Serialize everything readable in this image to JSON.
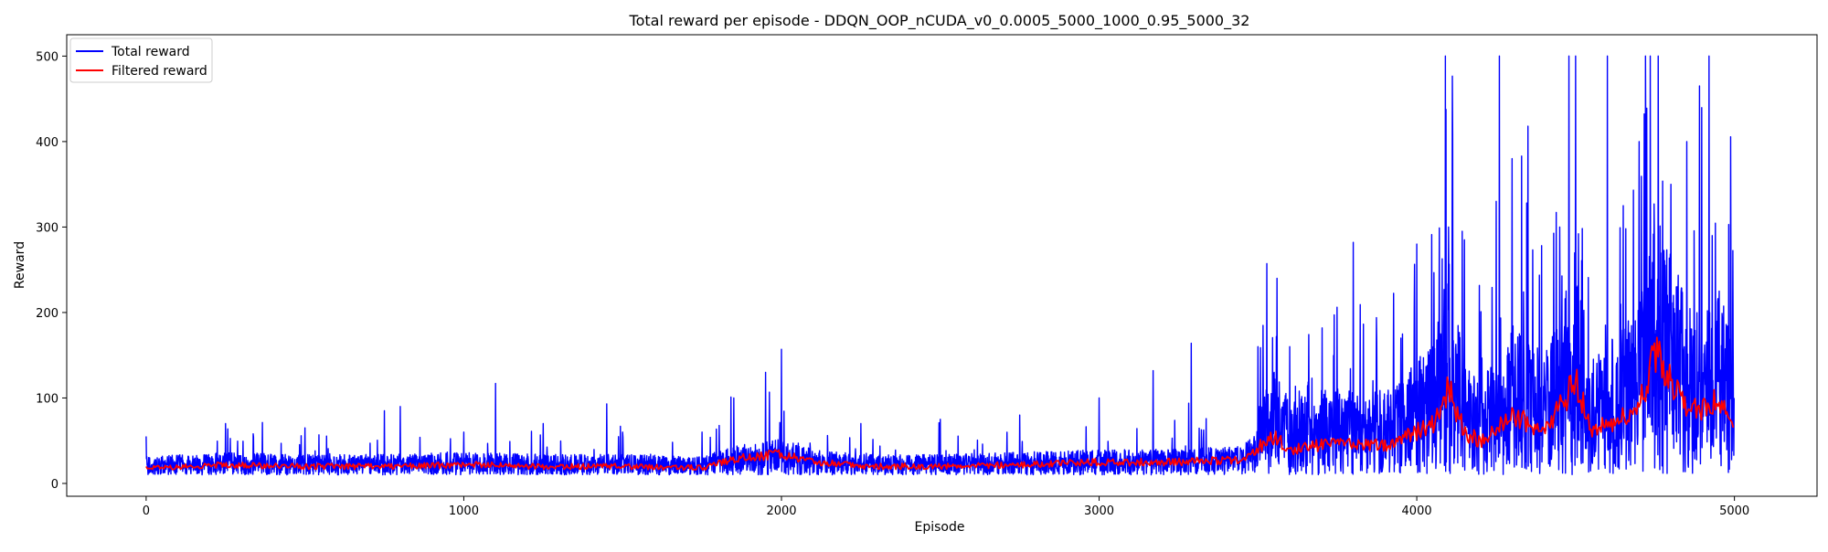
{
  "chart_data": {
    "type": "line",
    "title": "Total reward per episode - DDQN_OOP_nCUDA_v0_0.0005_5000_1000_0.95_5000_32",
    "xlabel": "Episode",
    "ylabel": "Reward",
    "xlim": [
      -250,
      5260
    ],
    "ylim": [
      -15,
      525
    ],
    "xticks": [
      0,
      1000,
      2000,
      3000,
      4000,
      5000
    ],
    "yticks": [
      0,
      100,
      200,
      300,
      400,
      500
    ],
    "grid": false,
    "legend_position": "upper-left",
    "episodes": 5000,
    "series": [
      {
        "name": "Total reward",
        "color": "#0000ff",
        "description_points": {
          "x": [
            0,
            250,
            500,
            750,
            800,
            1000,
            1100,
            1250,
            1450,
            1500,
            1750,
            1850,
            1950,
            2000,
            2250,
            2500,
            2750,
            3000,
            3170,
            3290,
            3500,
            3560,
            3600,
            3800,
            3950,
            4000,
            4090,
            4100,
            4150,
            4250,
            4260,
            4300,
            4330,
            4350,
            4450,
            4500,
            4600,
            4650,
            4700,
            4720,
            4760,
            4800,
            4850,
            4890,
            4920,
            4930,
            5000
          ],
          "y": [
            55,
            70,
            65,
            85,
            90,
            60,
            117,
            70,
            93,
            60,
            60,
            100,
            130,
            157,
            70,
            75,
            80,
            100,
            132,
            164,
            160,
            240,
            160,
            282,
            170,
            280,
            500,
            300,
            285,
            330,
            500,
            380,
            383,
            418,
            300,
            500,
            500,
            325,
            400,
            500,
            500,
            350,
            400,
            465,
            500,
            290,
            100
          ]
        }
      },
      {
        "name": "Filtered reward",
        "color": "#ff0000",
        "points": {
          "x": [
            0,
            250,
            500,
            750,
            1000,
            1250,
            1500,
            1750,
            1850,
            2000,
            2100,
            2250,
            2500,
            2750,
            3000,
            3250,
            3450,
            3550,
            3600,
            3700,
            3800,
            3900,
            4000,
            4050,
            4100,
            4150,
            4200,
            4250,
            4300,
            4350,
            4400,
            4450,
            4500,
            4550,
            4600,
            4650,
            4700,
            4750,
            4800,
            4850,
            4900,
            4950,
            5000
          ],
          "y": [
            18,
            22,
            20,
            20,
            22,
            20,
            20,
            18,
            28,
            35,
            25,
            20,
            20,
            22,
            25,
            25,
            28,
            55,
            40,
            45,
            45,
            45,
            60,
            70,
            110,
            60,
            50,
            65,
            80,
            70,
            60,
            90,
            120,
            60,
            70,
            80,
            90,
            150,
            120,
            90,
            90,
            100,
            75
          ]
        }
      }
    ]
  }
}
